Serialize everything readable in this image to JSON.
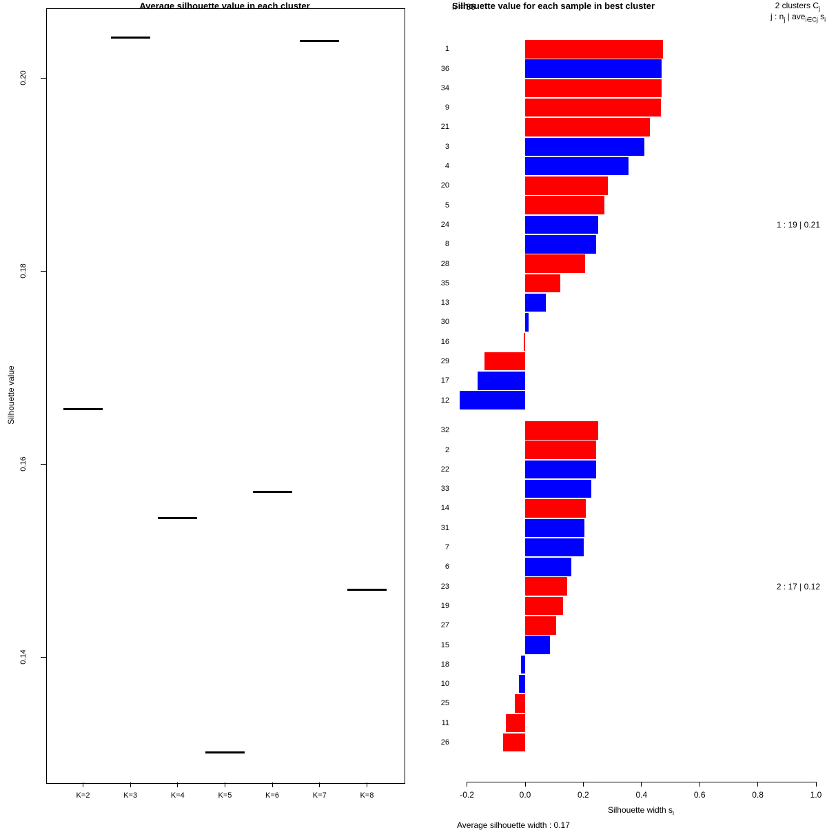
{
  "colors": {
    "red": "#ff0000",
    "blue": "#0000ff",
    "axis": "#000000",
    "background": "#ffffff"
  },
  "chart_data": [
    {
      "type": "scatter",
      "subtype": "horizontal-segment-per-category",
      "title": "Average silhouette value in each cluster",
      "xlabel": "",
      "ylabel": "Silhouette value",
      "categories": [
        "K=2",
        "K=3",
        "K=4",
        "K=5",
        "K=6",
        "K=7",
        "K=8"
      ],
      "values": [
        0.1657,
        0.2042,
        0.1544,
        0.1301,
        0.1571,
        0.2038,
        0.147
      ],
      "ylim": [
        0.127,
        0.2072
      ],
      "yticks": [
        0.2,
        0.18,
        0.16,
        0.14
      ],
      "ytick_labels": [
        "0.20",
        "0.18",
        "0.16",
        "0.14"
      ],
      "grid": false,
      "legend": "none"
    },
    {
      "type": "bar",
      "orientation": "horizontal",
      "title": "Silhouette value for each sample in best cluster",
      "n_label": "n = 36",
      "header_lines": [
        [
          {
            "t": "2 clusters C"
          },
          {
            "s": "j"
          }
        ],
        [
          {
            "t": "j :  n"
          },
          {
            "s": "j"
          },
          {
            "t": " | ave"
          },
          {
            "s": "i∈Cj"
          },
          {
            "t": "  s"
          },
          {
            "s": "i"
          }
        ]
      ],
      "xlabel_parts": [
        {
          "t": "Silhouette width s"
        },
        {
          "s": "i"
        }
      ],
      "footer": "Average silhouette width : 0.17",
      "xlim": [
        -0.25,
        1.04
      ],
      "xticks": [
        -0.2,
        0.0,
        0.2,
        0.4,
        0.6,
        0.8,
        1.0
      ],
      "xtick_labels": [
        "-0.2",
        "0.0",
        "0.2",
        "0.4",
        "0.6",
        "0.8",
        "1.0"
      ],
      "grid": false,
      "clusters": [
        {
          "annotation": "1 :  19 | 0.21",
          "samples": [
            [
              "1",
              0.475,
              "red"
            ],
            [
              "36",
              0.47,
              "blue"
            ],
            [
              "34",
              0.469,
              "red"
            ],
            [
              "9",
              0.468,
              "red"
            ],
            [
              "21",
              0.428,
              "red"
            ],
            [
              "3",
              0.41,
              "blue"
            ],
            [
              "4",
              0.355,
              "blue"
            ],
            [
              "20",
              0.285,
              "red"
            ],
            [
              "5",
              0.272,
              "red"
            ],
            [
              "24",
              0.252,
              "blue"
            ],
            [
              "8",
              0.243,
              "blue"
            ],
            [
              "28",
              0.207,
              "red"
            ],
            [
              "35",
              0.12,
              "red"
            ],
            [
              "13",
              0.07,
              "blue"
            ],
            [
              "30",
              0.013,
              "blue"
            ],
            [
              "16",
              -0.005,
              "red"
            ],
            [
              "29",
              -0.14,
              "red"
            ],
            [
              "17",
              -0.163,
              "blue"
            ],
            [
              "12",
              -0.225,
              "blue"
            ]
          ]
        },
        {
          "annotation": "2 :  17 | 0.12",
          "samples": [
            [
              "32",
              0.252,
              "red"
            ],
            [
              "2",
              0.244,
              "red"
            ],
            [
              "22",
              0.243,
              "blue"
            ],
            [
              "33",
              0.228,
              "blue"
            ],
            [
              "14",
              0.209,
              "red"
            ],
            [
              "31",
              0.204,
              "blue"
            ],
            [
              "7",
              0.201,
              "blue"
            ],
            [
              "6",
              0.158,
              "blue"
            ],
            [
              "23",
              0.145,
              "red"
            ],
            [
              "19",
              0.131,
              "red"
            ],
            [
              "27",
              0.106,
              "red"
            ],
            [
              "15",
              0.085,
              "blue"
            ],
            [
              "18",
              -0.015,
              "blue"
            ],
            [
              "10",
              -0.021,
              "blue"
            ],
            [
              "25",
              -0.035,
              "red"
            ],
            [
              "11",
              -0.066,
              "red"
            ],
            [
              "26",
              -0.075,
              "red"
            ]
          ]
        }
      ]
    }
  ]
}
